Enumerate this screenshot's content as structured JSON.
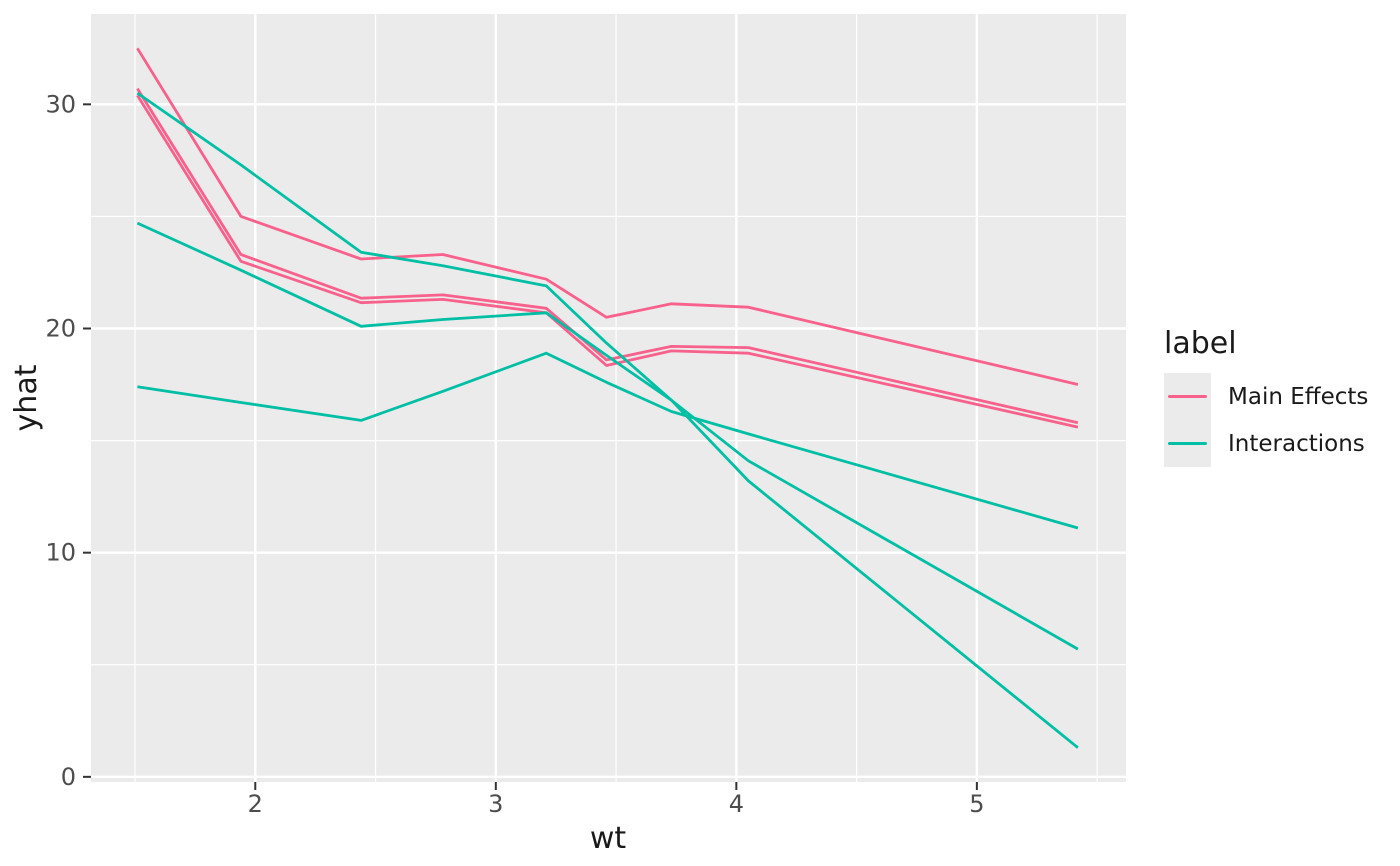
{
  "chart_data": {
    "type": "line",
    "title": "",
    "xlabel": "wt",
    "ylabel": "yhat",
    "xlim": [
      1.317,
      5.62
    ],
    "ylim": [
      -0.23,
      34.03
    ],
    "x_major_ticks": [
      2,
      3,
      4,
      5
    ],
    "y_major_ticks": [
      0,
      10,
      20,
      30
    ],
    "x_minor_ticks": [
      1.5,
      2.5,
      3.5,
      4.5,
      5.5
    ],
    "y_minor_ticks": [
      5,
      15,
      25
    ],
    "grid": "on",
    "panel_bg": "#ebebeb",
    "grid_color": "#ffffff",
    "tick_mark_color": "#333333",
    "axis_text_color": "#4d4d4d",
    "axis_title_color": "#1a1a1a",
    "x": [
      1.51,
      1.94,
      2.44,
      2.78,
      3.21,
      3.46,
      3.73,
      4.05,
      5.42
    ],
    "series": [
      {
        "name": "Main Effects",
        "group": "me-1",
        "color": "#f8618c",
        "values": [
          32.5,
          25.0,
          23.1,
          23.3,
          22.2,
          20.5,
          21.1,
          20.95,
          17.5
        ]
      },
      {
        "name": "Main Effects",
        "group": "me-2",
        "color": "#f8618c",
        "values": [
          30.7,
          23.3,
          21.35,
          21.5,
          20.9,
          18.6,
          19.2,
          19.15,
          15.8
        ]
      },
      {
        "name": "Main Effects",
        "group": "me-3",
        "color": "#f8618c",
        "values": [
          30.4,
          23.0,
          21.15,
          21.3,
          20.7,
          18.35,
          19.0,
          18.9,
          15.6
        ]
      },
      {
        "name": "Interactions",
        "group": "in-1",
        "color": "#00bfa4",
        "values": [
          30.5,
          27.3,
          23.4,
          22.8,
          21.9,
          19.35,
          16.8,
          13.2,
          1.3
        ]
      },
      {
        "name": "Interactions",
        "group": "in-2",
        "color": "#00bfa4",
        "values": [
          24.7,
          22.6,
          20.1,
          20.4,
          20.7,
          18.8,
          16.8,
          14.1,
          5.7
        ]
      },
      {
        "name": "Interactions",
        "group": "in-3",
        "color": "#00bfa4",
        "values": [
          17.4,
          16.7,
          15.9,
          17.2,
          18.9,
          17.6,
          16.3,
          15.3,
          11.1
        ]
      }
    ],
    "legend": {
      "title": "label",
      "position": "right",
      "entries": [
        {
          "label": "Main Effects",
          "color": "#f8618c"
        },
        {
          "label": "Interactions",
          "color": "#00bfa4"
        }
      ]
    }
  }
}
